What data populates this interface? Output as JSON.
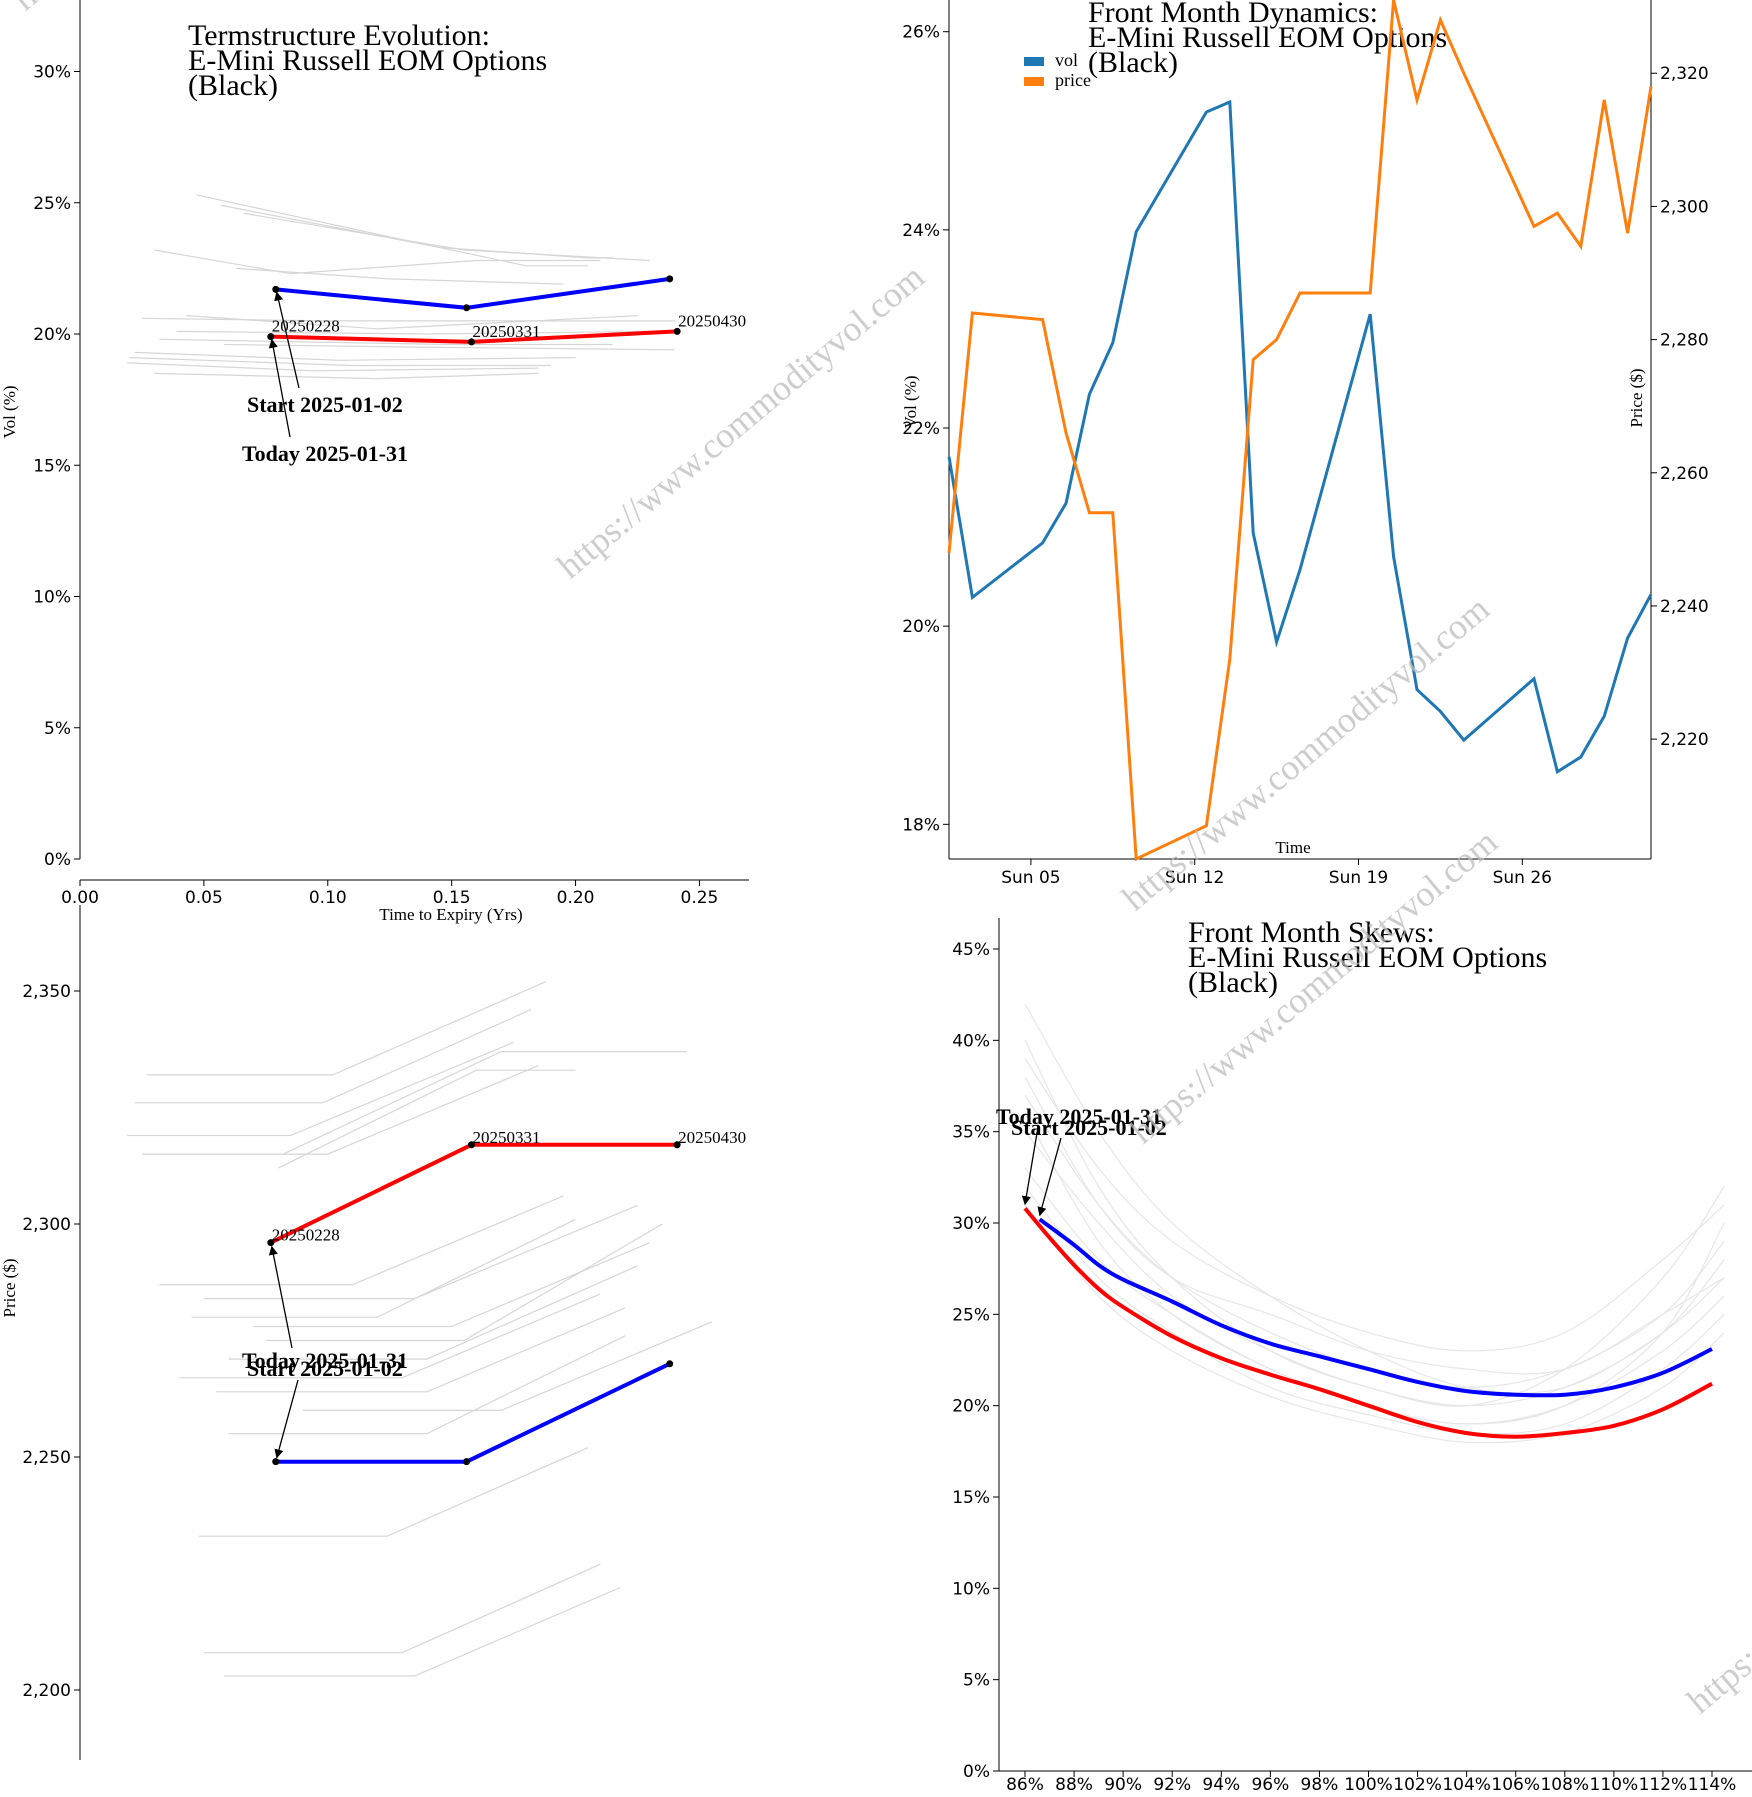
{
  "watermark": "https://www.commodityvol.com",
  "chart_data": [
    {
      "id": "termstructure",
      "type": "line",
      "title_lines": [
        "Termstructure Evolution:",
        "E-Mini Russell EOM Options",
        "(Black)"
      ],
      "xlabel": "Time to Expiry (Yrs)",
      "ylabel": "Vol (%)",
      "xlim": [
        0,
        0.27
      ],
      "ylim": [
        0,
        0.33
      ],
      "x_ticks": [
        0,
        0.05,
        0.1,
        0.15,
        0.2,
        0.25
      ],
      "x_tick_labels": [
        "0.00",
        "0.05",
        "0.10",
        "0.15",
        "0.20",
        "0.25"
      ],
      "y_ticks": [
        0,
        0.05,
        0.1,
        0.15,
        0.2,
        0.25,
        0.3
      ],
      "y_tick_labels": [
        "0%",
        "5%",
        "10%",
        "15%",
        "20%",
        "25%",
        "30%"
      ],
      "series": [
        {
          "name": "Today 2025-01-31",
          "color": "#ff0000",
          "x": [
            0.077,
            0.158,
            0.241
          ],
          "y": [
            0.199,
            0.197,
            0.201
          ],
          "point_labels": [
            "20250228",
            "20250331",
            "20250430"
          ]
        },
        {
          "name": "Start 2025-01-02",
          "color": "#0000ff",
          "x": [
            0.079,
            0.156,
            0.238
          ],
          "y": [
            0.217,
            0.21,
            0.221
          ]
        }
      ],
      "history": [
        [
          [
            0.047,
            0.253
          ],
          [
            0.125,
            0.237
          ],
          [
            0.18,
            0.226
          ],
          [
            0.205,
            0.226
          ]
        ],
        [
          [
            0.057,
            0.249
          ],
          [
            0.145,
            0.233
          ],
          [
            0.205,
            0.229
          ],
          [
            0.215,
            0.229
          ]
        ],
        [
          [
            0.066,
            0.246
          ],
          [
            0.155,
            0.232
          ],
          [
            0.23,
            0.228
          ]
        ],
        [
          [
            0.03,
            0.232
          ],
          [
            0.085,
            0.223
          ],
          [
            0.16,
            0.228
          ],
          [
            0.21,
            0.228
          ]
        ],
        [
          [
            0.063,
            0.225
          ],
          [
            0.125,
            0.221
          ],
          [
            0.195,
            0.219
          ]
        ],
        [
          [
            0.043,
            0.207
          ],
          [
            0.12,
            0.202
          ],
          [
            0.225,
            0.207
          ]
        ],
        [
          [
            0.025,
            0.206
          ],
          [
            0.1,
            0.205
          ],
          [
            0.24,
            0.205
          ]
        ],
        [
          [
            0.039,
            0.201
          ],
          [
            0.14,
            0.2
          ],
          [
            0.23,
            0.201
          ]
        ],
        [
          [
            0.058,
            0.196
          ],
          [
            0.135,
            0.195
          ],
          [
            0.24,
            0.194
          ]
        ],
        [
          [
            0.022,
            0.193
          ],
          [
            0.105,
            0.19
          ],
          [
            0.2,
            0.191
          ]
        ],
        [
          [
            0.02,
            0.191
          ],
          [
            0.11,
            0.188
          ],
          [
            0.19,
            0.188
          ]
        ],
        [
          [
            0.019,
            0.189
          ],
          [
            0.095,
            0.186
          ],
          [
            0.185,
            0.187
          ]
        ],
        [
          [
            0.03,
            0.185
          ],
          [
            0.12,
            0.183
          ],
          [
            0.185,
            0.185
          ]
        ],
        [
          [
            0.032,
            0.198
          ],
          [
            0.15,
            0.196
          ],
          [
            0.215,
            0.196
          ]
        ]
      ],
      "annotations": [
        {
          "text": "Start 2025-01-02",
          "target": [
            0.079,
            0.217
          ]
        },
        {
          "text": "Today 2025-01-31",
          "target": [
            0.077,
            0.199
          ]
        }
      ]
    },
    {
      "id": "dynamics",
      "type": "line",
      "title_lines": [
        "Front Month Dynamics:",
        "E-Mini Russell EOM Options",
        "(Black)"
      ],
      "xlabel": "Time",
      "ylabel": "Vol (%)",
      "ylabel_right": "Price ($)",
      "xlim_day": [
        1.5,
        31.5
      ],
      "ylim": [
        0.1765,
        0.2632
      ],
      "ylim_right": [
        2202,
        2331
      ],
      "x_ticks_day": [
        5,
        12,
        19,
        26
      ],
      "x_tick_labels": [
        "Sun 05",
        "Sun 12",
        "Sun 19",
        "Sun 26"
      ],
      "y_ticks": [
        0.18,
        0.2,
        0.22,
        0.24,
        0.26
      ],
      "y_tick_labels": [
        "18%",
        "20%",
        "22%",
        "24%",
        "26%"
      ],
      "y_ticks_right": [
        2220,
        2240,
        2260,
        2280,
        2300,
        2320
      ],
      "y_tick_labels_right": [
        "2,220",
        "2,240",
        "2,260",
        "2,280",
        "2,300",
        "2,320"
      ],
      "legend": [
        "vol",
        "price"
      ],
      "series": [
        {
          "name": "vol",
          "color": "#1f77b4",
          "axis": "left",
          "x": [
            1.5,
            2.5,
            5.5,
            6.5,
            7.5,
            8.5,
            9.5,
            12.5,
            13.5,
            14.5,
            15.5,
            16.5,
            19.5,
            20.5,
            21.5,
            22.5,
            23.5,
            26.5,
            27.5,
            28.5,
            29.5,
            30.5,
            31.5
          ],
          "y": [
            0.2171,
            0.2029,
            0.2084,
            0.2124,
            0.2234,
            0.2286,
            0.2398,
            0.2519,
            0.2529,
            0.2094,
            0.1984,
            0.2057,
            0.2315,
            0.207,
            0.1936,
            0.1914,
            0.1885,
            0.1947,
            0.1853,
            0.1868,
            0.1909,
            0.1988,
            0.2032
          ]
        },
        {
          "name": "price",
          "color": "#ff7f0e",
          "axis": "right",
          "x": [
            1.5,
            2.5,
            5.5,
            6.5,
            7.5,
            8.5,
            9.5,
            12.5,
            13.5,
            14.5,
            15.5,
            16.5,
            19.5,
            20.5,
            21.5,
            22.5,
            23.5,
            26.5,
            27.5,
            28.5,
            29.5,
            30.5,
            31.5
          ],
          "y": [
            2248,
            2284,
            2283,
            2266,
            2254,
            2254,
            2202,
            2207,
            2232,
            2277,
            2280,
            2287,
            2287,
            2331,
            2316,
            2328,
            2320,
            2297,
            2299,
            2294,
            2316,
            2296,
            2318
          ]
        }
      ]
    },
    {
      "id": "price_term",
      "type": "line",
      "title_lines": [],
      "xlabel": "",
      "ylabel": "Price ($)",
      "xlim": [
        0,
        0.27
      ],
      "ylim": [
        2185,
        2365
      ],
      "y_ticks": [
        2200,
        2250,
        2300,
        2350
      ],
      "y_tick_labels": [
        "2,200",
        "2,250",
        "2,300",
        "2,350"
      ],
      "series": [
        {
          "name": "Today 2025-01-31",
          "color": "#ff0000",
          "x": [
            0.077,
            0.158,
            0.241
          ],
          "y": [
            2296,
            2317,
            2317
          ],
          "point_labels": [
            "20250228",
            "20250331",
            "20250430"
          ]
        },
        {
          "name": "Start 2025-01-02",
          "color": "#0000ff",
          "x": [
            0.079,
            0.156,
            0.238
          ],
          "y": [
            2249,
            2249,
            2270
          ]
        }
      ],
      "history": [
        [
          [
            0.027,
            2332
          ],
          [
            0.102,
            2332
          ],
          [
            0.188,
            2352
          ]
        ],
        [
          [
            0.022,
            2326
          ],
          [
            0.098,
            2326
          ],
          [
            0.182,
            2346
          ]
        ],
        [
          [
            0.019,
            2319
          ],
          [
            0.085,
            2319
          ],
          [
            0.175,
            2339
          ]
        ],
        [
          [
            0.025,
            2315
          ],
          [
            0.1,
            2315
          ],
          [
            0.185,
            2334
          ]
        ],
        [
          [
            0.082,
            2315
          ],
          [
            0.17,
            2337
          ],
          [
            0.245,
            2337
          ]
        ],
        [
          [
            0.08,
            2312
          ],
          [
            0.16,
            2333
          ],
          [
            0.2,
            2333
          ]
        ],
        [
          [
            0.032,
            2287
          ],
          [
            0.11,
            2287
          ],
          [
            0.195,
            2306
          ]
        ],
        [
          [
            0.045,
            2280
          ],
          [
            0.12,
            2280
          ],
          [
            0.2,
            2301
          ]
        ],
        [
          [
            0.05,
            2284
          ],
          [
            0.135,
            2284
          ],
          [
            0.225,
            2304
          ]
        ],
        [
          [
            0.07,
            2278
          ],
          [
            0.15,
            2278
          ],
          [
            0.23,
            2296
          ]
        ],
        [
          [
            0.06,
            2271
          ],
          [
            0.14,
            2271
          ],
          [
            0.225,
            2291
          ]
        ],
        [
          [
            0.075,
            2275
          ],
          [
            0.155,
            2275
          ],
          [
            0.235,
            2300
          ]
        ],
        [
          [
            0.04,
            2267
          ],
          [
            0.13,
            2267
          ],
          [
            0.21,
            2285
          ]
        ],
        [
          [
            0.055,
            2264
          ],
          [
            0.14,
            2264
          ],
          [
            0.22,
            2282
          ]
        ],
        [
          [
            0.09,
            2260
          ],
          [
            0.17,
            2260
          ],
          [
            0.255,
            2279
          ]
        ],
        [
          [
            0.06,
            2255
          ],
          [
            0.14,
            2255
          ],
          [
            0.22,
            2276
          ]
        ],
        [
          [
            0.048,
            2233
          ],
          [
            0.124,
            2233
          ],
          [
            0.205,
            2252
          ]
        ],
        [
          [
            0.05,
            2208
          ],
          [
            0.13,
            2208
          ],
          [
            0.21,
            2227
          ]
        ],
        [
          [
            0.058,
            2203
          ],
          [
            0.135,
            2203
          ],
          [
            0.218,
            2222
          ]
        ]
      ],
      "annotations": [
        {
          "text": "Today 2025-01-31",
          "target": [
            0.077,
            2296
          ]
        },
        {
          "text": "Start 2025-01-02",
          "target": [
            0.079,
            2249
          ]
        }
      ]
    },
    {
      "id": "skews",
      "type": "line",
      "title_lines": [
        "Front Month Skews:",
        "E-Mini Russell EOM Options",
        "(Black)"
      ],
      "xlabel": "",
      "ylabel": "",
      "xlim": [
        0.85,
        1.145
      ],
      "ylim": [
        0,
        0.45
      ],
      "x_ticks": [
        0.86,
        0.88,
        0.9,
        0.92,
        0.94,
        0.96,
        0.98,
        1.0,
        1.02,
        1.04,
        1.06,
        1.08,
        1.1,
        1.12,
        1.14
      ],
      "x_tick_labels": [
        "86%",
        "88%",
        "90%",
        "92%",
        "94%",
        "96%",
        "98%",
        "100%",
        "102%",
        "104%",
        "106%",
        "108%",
        "110%",
        "112%",
        "114%"
      ],
      "y_ticks": [
        0,
        0.05,
        0.1,
        0.15,
        0.2,
        0.25,
        0.3,
        0.35,
        0.4,
        0.45
      ],
      "y_tick_labels": [
        "0%",
        "5%",
        "10%",
        "15%",
        "20%",
        "25%",
        "30%",
        "35%",
        "40%",
        "45%"
      ],
      "series": [
        {
          "name": "Today 2025-01-31",
          "color": "#ff0000",
          "x": [
            0.86,
            0.87,
            0.88,
            0.89,
            0.9,
            0.92,
            0.94,
            0.96,
            0.98,
            1.0,
            1.02,
            1.04,
            1.06,
            1.08,
            1.1,
            1.12,
            1.14
          ],
          "y": [
            0.308,
            0.292,
            0.277,
            0.264,
            0.254,
            0.238,
            0.226,
            0.217,
            0.209,
            0.2,
            0.191,
            0.185,
            0.183,
            0.185,
            0.189,
            0.198,
            0.212
          ]
        },
        {
          "name": "Start 2025-01-02",
          "color": "#0000ff",
          "x": [
            0.866,
            0.88,
            0.89,
            0.9,
            0.92,
            0.94,
            0.96,
            0.98,
            1.0,
            1.02,
            1.04,
            1.06,
            1.08,
            1.1,
            1.12,
            1.14
          ],
          "y": [
            0.302,
            0.288,
            0.277,
            0.269,
            0.257,
            0.244,
            0.234,
            0.227,
            0.22,
            0.213,
            0.208,
            0.206,
            0.206,
            0.21,
            0.218,
            0.231
          ]
        }
      ],
      "annotations": [
        {
          "text": "Today 2025-01-31",
          "target": [
            0.86,
            0.308
          ]
        },
        {
          "text": "Start 2025-01-02",
          "target": [
            0.866,
            0.302
          ]
        }
      ]
    }
  ]
}
